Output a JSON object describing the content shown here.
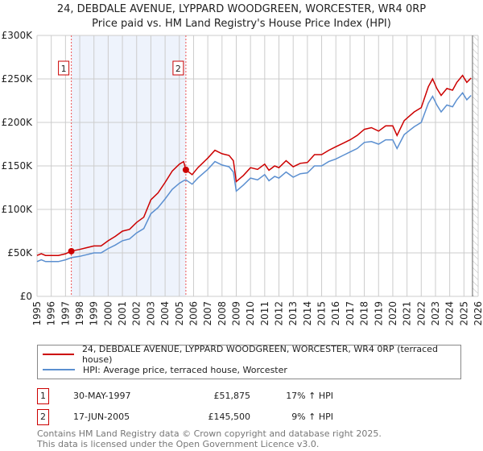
{
  "title": "24, DEBDALE AVENUE, LYPPARD WOODGREEN, WORCESTER, WR4 0RP",
  "subtitle": "Price paid vs. HM Land Registry's House Price Index (HPI)",
  "chart_data": {
    "type": "line",
    "title": "24, DEBDALE AVENUE, LYPPARD WOODGREEN, WORCESTER, WR4 0RP",
    "subtitle": "Price paid vs. HM Land Registry's House Price Index (HPI)",
    "xlim": [
      1995,
      2026
    ],
    "ylim": [
      0,
      300000
    ],
    "yticks": [
      {
        "v": 0,
        "label": "£0"
      },
      {
        "v": 50000,
        "label": "£50K"
      },
      {
        "v": 100000,
        "label": "£100K"
      },
      {
        "v": 150000,
        "label": "£150K"
      },
      {
        "v": 200000,
        "label": "£200K"
      },
      {
        "v": 250000,
        "label": "£250K"
      },
      {
        "v": 300000,
        "label": "£300K"
      }
    ],
    "xticks": [
      "1995",
      "1996",
      "1997",
      "1998",
      "1999",
      "2000",
      "2001",
      "2002",
      "2003",
      "2004",
      "2005",
      "2006",
      "2007",
      "2008",
      "2009",
      "2010",
      "2011",
      "2012",
      "2013",
      "2014",
      "2015",
      "2016",
      "2017",
      "2018",
      "2019",
      "2020",
      "2021",
      "2022",
      "2023",
      "2024",
      "2025",
      "2026"
    ],
    "grid": true,
    "x": [
      1995.0,
      1995.3,
      1995.6,
      1996.5,
      1997.0,
      1997.41,
      1998.0,
      1998.5,
      1999.0,
      1999.5,
      2000.0,
      2000.5,
      2001.0,
      2001.5,
      2002.0,
      2002.5,
      2003.0,
      2003.5,
      2004.0,
      2004.5,
      2005.0,
      2005.3,
      2005.46,
      2005.9,
      2006.3,
      2007.0,
      2007.5,
      2008.0,
      2008.5,
      2008.8,
      2009.0,
      2009.5,
      2010.0,
      2010.5,
      2011.0,
      2011.3,
      2011.7,
      2012.0,
      2012.5,
      2013.0,
      2013.5,
      2014.0,
      2014.5,
      2015.0,
      2015.5,
      2016.0,
      2016.5,
      2017.0,
      2017.5,
      2018.0,
      2018.5,
      2019.0,
      2019.5,
      2020.0,
      2020.3,
      2020.8,
      2021.5,
      2022.0,
      2022.5,
      2022.8,
      2023.1,
      2023.4,
      2023.8,
      2024.2,
      2024.5,
      2024.9,
      2025.2,
      2025.5
    ],
    "series": [
      {
        "name": "24, DEBDALE AVENUE, LYPPARD WOODGREEN, WORCESTER, WR4 0RP (terraced house)",
        "color": "#cc0000",
        "values": [
          47,
          49,
          47,
          47,
          49,
          52,
          54,
          56,
          58,
          58,
          64,
          69,
          75,
          77,
          85,
          91,
          111,
          119,
          131,
          144,
          152,
          155,
          145.5,
          140,
          148,
          159,
          168,
          164,
          162,
          156,
          132,
          139,
          148,
          146,
          152,
          145,
          150,
          148,
          156,
          149,
          153,
          154,
          163,
          163,
          168,
          172,
          176,
          180,
          185,
          192,
          194,
          190,
          196,
          196,
          185,
          202,
          212,
          217,
          241,
          250,
          239,
          231,
          239,
          237,
          246,
          254,
          246,
          251
        ]
      },
      {
        "name": "HPI: Average price, terraced house, Worcester",
        "color": "#5b8fd0",
        "values": [
          40,
          42,
          40,
          40,
          42,
          44.5,
          46,
          48,
          50,
          50,
          55,
          59,
          64,
          66,
          73,
          78,
          95,
          102,
          112,
          123,
          130,
          133,
          134,
          129,
          136,
          146,
          155,
          151,
          149,
          143,
          121,
          128,
          136,
          134,
          140,
          133,
          138,
          136,
          143,
          137,
          141,
          142,
          150,
          150,
          155,
          158,
          162,
          166,
          170,
          177,
          178,
          175,
          180,
          180,
          170,
          186,
          195,
          200,
          222,
          230,
          220,
          212,
          220,
          218,
          226,
          234,
          226,
          231
        ]
      }
    ],
    "values_unit": "£ thousands",
    "sales": [
      {
        "label": "1",
        "x": 1997.41,
        "price": 51875
      },
      {
        "label": "2",
        "x": 2005.46,
        "price": 145500
      }
    ],
    "shaded_range": [
      1997.41,
      2005.46
    ],
    "forecast_hatch_from": 2025.6
  },
  "legend": {
    "red_label": "24, DEBDALE AVENUE, LYPPARD WOODGREEN, WORCESTER, WR4 0RP (terraced house)",
    "blue_label": "HPI: Average price, terraced house, Worcester",
    "red_color": "#cc0000",
    "blue_color": "#5b8fd0"
  },
  "transactions": [
    {
      "num": "1",
      "date": "30-MAY-1997",
      "price": "£51,875",
      "hpi": "17% ↑ HPI"
    },
    {
      "num": "2",
      "date": "17-JUN-2005",
      "price": "£145,500",
      "hpi": "9% ↑ HPI"
    }
  ],
  "footer": {
    "line1": "Contains HM Land Registry data © Crown copyright and database right 2025.",
    "line2": "This data is licensed under the Open Government Licence v3.0."
  }
}
